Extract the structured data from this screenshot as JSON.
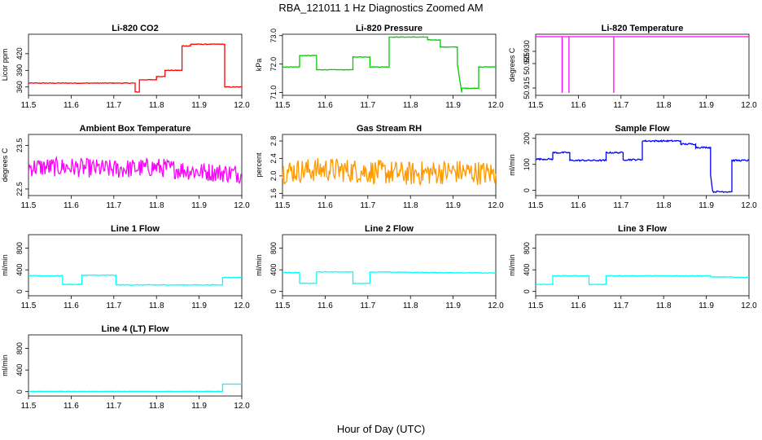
{
  "figure": {
    "title": "RBA_121011  1 Hz Diagnostics Zoomed AM",
    "xlabel": "Hour of Day (UTC)"
  },
  "chart_data": [
    {
      "type": "line",
      "title": "Li-820 CO2",
      "ylabel": "Licor ppm",
      "xlim": [
        11.5,
        12.0
      ],
      "ylim": [
        345,
        455
      ],
      "xticks": [
        "11.5",
        "11.6",
        "11.7",
        "11.8",
        "11.9",
        "12.0"
      ],
      "yticks": [
        {
          "v": 360,
          "label": "360"
        },
        {
          "v": 390,
          "label": "390"
        },
        {
          "v": 420,
          "label": "420"
        }
      ],
      "noise": 0.6,
      "series": [
        {
          "color": "#ff0000",
          "x": [
            11.5,
            11.75,
            11.75,
            11.76,
            11.76,
            11.8,
            11.8,
            11.82,
            11.82,
            11.86,
            11.86,
            11.88,
            11.88,
            11.96,
            11.96,
            12.0
          ],
          "y": [
            367,
            367,
            351,
            351,
            373,
            373,
            379,
            379,
            390,
            390,
            434,
            434,
            437,
            437,
            360,
            360
          ]
        }
      ]
    },
    {
      "type": "line",
      "title": "Li-820 Pressure",
      "ylabel": "kPa",
      "xlim": [
        11.5,
        12.0
      ],
      "ylim": [
        70.9,
        73.05
      ],
      "xticks": [
        "11.5",
        "11.6",
        "11.7",
        "11.8",
        "11.9",
        "12.0"
      ],
      "yticks": [
        {
          "v": 71.0,
          "label": "71.0"
        },
        {
          "v": 72.0,
          "label": "72.0"
        },
        {
          "v": 73.0,
          "label": "73.0"
        }
      ],
      "noise": 0.01,
      "series": [
        {
          "color": "#00cc00",
          "x": [
            11.5,
            11.54,
            11.54,
            11.58,
            11.58,
            11.665,
            11.665,
            11.705,
            11.705,
            11.75,
            11.75,
            11.84,
            11.84,
            11.87,
            11.87,
            11.91,
            11.91,
            11.92,
            11.92,
            11.96,
            11.96,
            12.0
          ],
          "y": [
            71.9,
            71.9,
            72.3,
            72.3,
            71.8,
            71.8,
            72.25,
            72.25,
            71.9,
            71.9,
            72.95,
            72.95,
            72.85,
            72.85,
            72.6,
            72.6,
            72.0,
            71.0,
            71.15,
            71.15,
            71.9,
            71.9
          ]
        }
      ]
    },
    {
      "type": "line",
      "title": "Li-820 Temperature",
      "ylabel": "degrees C",
      "xlim": [
        11.5,
        12.0
      ],
      "ylim": [
        50.912,
        50.937
      ],
      "xticks": [
        "11.5",
        "11.6",
        "11.7",
        "11.8",
        "11.9",
        "12.0"
      ],
      "yticks": [
        {
          "v": 50.915,
          "label": "50.915"
        },
        {
          "v": 50.925,
          "label": "50.925"
        },
        {
          "v": 50.93,
          "label": "50.930"
        }
      ],
      "noise": 0,
      "series": [
        {
          "color": "#ff00ff",
          "x": [
            11.5,
            11.562,
            11.562,
            11.562,
            11.578,
            11.578,
            11.578,
            11.683,
            11.683,
            11.683,
            12.0
          ],
          "y": [
            50.936,
            50.936,
            50.913,
            50.936,
            50.936,
            50.913,
            50.936,
            50.936,
            50.913,
            50.936,
            50.936
          ]
        }
      ]
    },
    {
      "type": "line",
      "title": "Ambient Box Temperature",
      "ylabel": "degrees C",
      "xlim": [
        11.5,
        12.0
      ],
      "ylim": [
        22.35,
        23.75
      ],
      "xticks": [
        "11.5",
        "11.6",
        "11.7",
        "11.8",
        "11.9",
        "12.0"
      ],
      "yticks": [
        {
          "v": 22.5,
          "label": "22.5"
        },
        {
          "v": 23.5,
          "label": "23.5"
        }
      ],
      "noise": 0.22,
      "series": [
        {
          "color": "#ff00ff",
          "x": [
            11.5,
            11.6,
            11.7,
            11.8,
            11.9,
            12.0
          ],
          "y": [
            23.0,
            23.0,
            22.95,
            23.0,
            22.9,
            22.85
          ]
        }
      ]
    },
    {
      "type": "line",
      "title": "Gas Stream RH",
      "ylabel": "percent",
      "xlim": [
        11.5,
        12.0
      ],
      "ylim": [
        1.55,
        2.95
      ],
      "xticks": [
        "11.5",
        "11.6",
        "11.7",
        "11.8",
        "11.9",
        "12.0"
      ],
      "yticks": [
        {
          "v": 1.6,
          "label": "1.6"
        },
        {
          "v": 2.0,
          "label": "2.0"
        },
        {
          "v": 2.4,
          "label": "2.4"
        },
        {
          "v": 2.8,
          "label": "2.8"
        }
      ],
      "noise": 0.28,
      "series": [
        {
          "color": "#ff9900",
          "x": [
            11.5,
            11.6,
            11.7,
            11.8,
            11.9,
            12.0
          ],
          "y": [
            2.1,
            2.15,
            2.1,
            2.05,
            2.1,
            2.05
          ]
        }
      ]
    },
    {
      "type": "line",
      "title": "Sample Flow",
      "ylabel": "ml/min",
      "xlim": [
        11.5,
        12.0
      ],
      "ylim": [
        -20,
        215
      ],
      "xticks": [
        "11.5",
        "11.6",
        "11.7",
        "11.8",
        "11.9",
        "12.0"
      ],
      "yticks": [
        {
          "v": 0,
          "label": "0"
        },
        {
          "v": 100,
          "label": "100"
        },
        {
          "v": 200,
          "label": "200"
        }
      ],
      "noise": 3,
      "series": [
        {
          "color": "#0000ff",
          "x": [
            11.5,
            11.54,
            11.54,
            11.58,
            11.58,
            11.665,
            11.665,
            11.705,
            11.705,
            11.75,
            11.75,
            11.84,
            11.84,
            11.875,
            11.875,
            11.91,
            11.91,
            11.915,
            11.915,
            11.96,
            11.96,
            12.0
          ],
          "y": [
            120,
            120,
            145,
            145,
            115,
            115,
            145,
            145,
            118,
            118,
            190,
            190,
            178,
            178,
            165,
            165,
            60,
            -5,
            -5,
            -5,
            115,
            115
          ]
        }
      ]
    },
    {
      "type": "line",
      "title": "Line 1 Flow",
      "ylabel": "ml/min",
      "xlim": [
        11.5,
        12.0
      ],
      "ylim": [
        -80,
        1050
      ],
      "xticks": [
        "11.5",
        "11.6",
        "11.7",
        "11.8",
        "11.9",
        "12.0"
      ],
      "yticks": [
        {
          "v": 0,
          "label": "0"
        },
        {
          "v": 400,
          "label": "400"
        },
        {
          "v": 800,
          "label": "800"
        }
      ],
      "noise": 8,
      "series": [
        {
          "color": "#00ffff",
          "x": [
            11.5,
            11.58,
            11.58,
            11.625,
            11.625,
            11.705,
            11.705,
            11.955,
            11.955,
            12.0
          ],
          "y": [
            290,
            290,
            130,
            130,
            300,
            300,
            120,
            120,
            260,
            260
          ]
        }
      ]
    },
    {
      "type": "line",
      "title": "Line 2 Flow",
      "ylabel": "ml/min",
      "xlim": [
        11.5,
        12.0
      ],
      "ylim": [
        -80,
        1050
      ],
      "xticks": [
        "11.5",
        "11.6",
        "11.7",
        "11.8",
        "11.9",
        "12.0"
      ],
      "yticks": [
        {
          "v": 0,
          "label": "0"
        },
        {
          "v": 400,
          "label": "400"
        },
        {
          "v": 800,
          "label": "800"
        }
      ],
      "noise": 6,
      "series": [
        {
          "color": "#00ffff",
          "x": [
            11.5,
            11.54,
            11.54,
            11.58,
            11.58,
            11.665,
            11.665,
            11.705,
            11.705,
            12.0
          ],
          "y": [
            350,
            350,
            150,
            150,
            360,
            360,
            150,
            150,
            360,
            340
          ]
        }
      ]
    },
    {
      "type": "line",
      "title": "Line 3 Flow",
      "ylabel": "ml/min",
      "xlim": [
        11.5,
        12.0
      ],
      "ylim": [
        -80,
        1050
      ],
      "xticks": [
        "11.5",
        "11.6",
        "11.7",
        "11.8",
        "11.9",
        "12.0"
      ],
      "yticks": [
        {
          "v": 0,
          "label": "0"
        },
        {
          "v": 400,
          "label": "400"
        },
        {
          "v": 800,
          "label": "800"
        }
      ],
      "noise": 6,
      "series": [
        {
          "color": "#00ffff",
          "x": [
            11.5,
            11.54,
            11.54,
            11.625,
            11.625,
            11.665,
            11.665,
            11.91,
            11.91,
            12.0
          ],
          "y": [
            130,
            130,
            290,
            290,
            130,
            130,
            290,
            290,
            270,
            260
          ]
        }
      ]
    },
    {
      "type": "line",
      "title": "Line 4 (LT) Flow",
      "ylabel": "ml/min",
      "xlim": [
        11.5,
        12.0
      ],
      "ylim": [
        -80,
        1050
      ],
      "xticks": [
        "11.5",
        "11.6",
        "11.7",
        "11.8",
        "11.9",
        "12.0"
      ],
      "yticks": [
        {
          "v": 0,
          "label": "0"
        },
        {
          "v": 400,
          "label": "400"
        },
        {
          "v": 800,
          "label": "800"
        }
      ],
      "noise": 2,
      "series": [
        {
          "color": "#00ffff",
          "x": [
            11.5,
            11.955,
            11.955,
            12.0
          ],
          "y": [
            5,
            5,
            140,
            140
          ]
        }
      ]
    }
  ]
}
